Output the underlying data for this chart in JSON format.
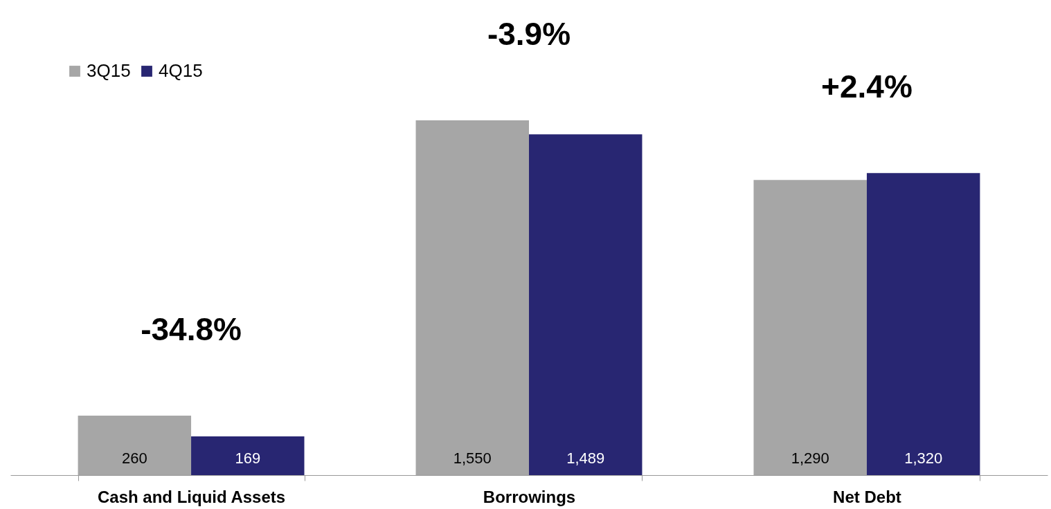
{
  "chart_data": {
    "type": "bar",
    "categories": [
      "Cash and Liquid Assets",
      "Borrowings",
      "Net Debt"
    ],
    "series": [
      {
        "name": "3Q15",
        "color": "#a6a6a6",
        "values": [
          260,
          1550,
          1290
        ],
        "value_labels": [
          "260",
          "1,550",
          "1,290"
        ]
      },
      {
        "name": "4Q15",
        "color": "#282672",
        "values": [
          169,
          1489,
          1320
        ],
        "value_labels": [
          "169",
          "1,489",
          "1,320"
        ]
      }
    ],
    "legend": "top left",
    "grid": false,
    "annotations": [
      "-34.8%",
      "-3.9%",
      "+2.4%"
    ]
  }
}
